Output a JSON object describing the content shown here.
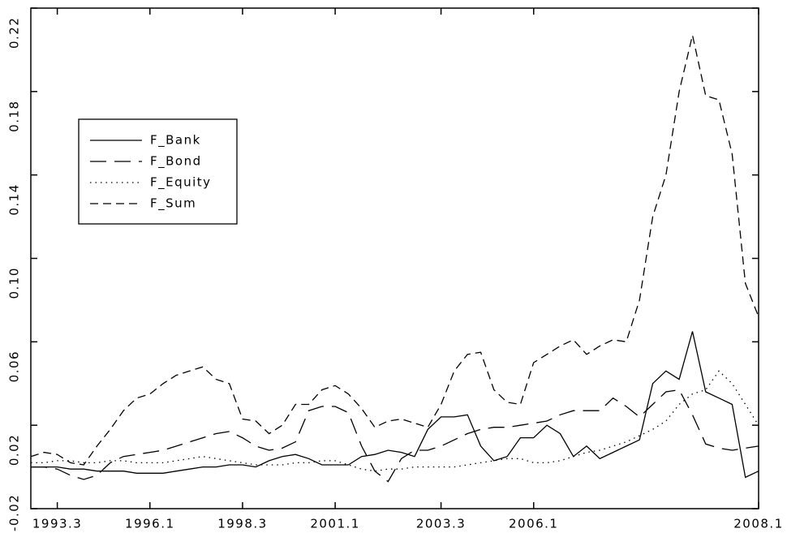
{
  "chart_data": {
    "type": "line",
    "categories": [
      null,
      null,
      "1993.3",
      null,
      null,
      null,
      null,
      null,
      null,
      "1996.1",
      null,
      null,
      null,
      null,
      null,
      null,
      "1998.3",
      null,
      null,
      null,
      null,
      null,
      null,
      "2001.1",
      null,
      null,
      null,
      null,
      null,
      null,
      null,
      "2003.3",
      null,
      null,
      null,
      null,
      null,
      null,
      "2006.1",
      null,
      null,
      null,
      null,
      null,
      null,
      null,
      null,
      null,
      null,
      null,
      null,
      null,
      null,
      null,
      null,
      "2008.1"
    ],
    "series": [
      {
        "name": "F_Bank",
        "color": "#000000",
        "linestyle": "solid",
        "values": [
          0.0,
          0.0,
          0.0,
          -0.001,
          -0.001,
          -0.002,
          -0.002,
          -0.002,
          -0.003,
          -0.003,
          -0.003,
          -0.002,
          -0.001,
          0.0,
          0.0,
          0.001,
          0.001,
          0.0,
          0.003,
          0.005,
          0.006,
          0.004,
          0.001,
          0.001,
          0.001,
          0.005,
          0.006,
          0.008,
          0.007,
          0.005,
          0.018,
          0.024,
          0.024,
          0.025,
          0.01,
          0.003,
          0.005,
          0.014,
          0.014,
          0.02,
          0.016,
          0.005,
          0.01,
          0.004,
          0.007,
          0.01,
          0.013,
          0.04,
          0.046,
          0.042,
          0.065,
          0.036,
          0.033,
          0.03,
          -0.005,
          -0.002
        ]
      },
      {
        "name": "F_Bond",
        "color": "#000000",
        "linestyle": "long-dash",
        "values": [
          0.0,
          0.0,
          -0.001,
          -0.004,
          -0.006,
          -0.004,
          0.002,
          0.005,
          0.006,
          0.007,
          0.008,
          0.01,
          0.012,
          0.014,
          0.016,
          0.017,
          0.014,
          0.01,
          0.008,
          0.009,
          0.012,
          0.027,
          0.029,
          0.029,
          0.026,
          0.01,
          -0.002,
          -0.007,
          0.004,
          0.008,
          0.008,
          0.01,
          0.013,
          0.016,
          0.018,
          0.019,
          0.019,
          0.02,
          0.021,
          0.022,
          0.025,
          0.027,
          0.027,
          0.027,
          0.033,
          0.029,
          0.024,
          0.03,
          0.036,
          0.037,
          0.025,
          0.011,
          0.009,
          0.008,
          0.009,
          0.01
        ]
      },
      {
        "name": "F_Equity",
        "color": "#000000",
        "linestyle": "dotted",
        "values": [
          0.002,
          0.002,
          0.003,
          0.003,
          0.002,
          0.002,
          0.003,
          0.003,
          0.002,
          0.002,
          0.002,
          0.003,
          0.004,
          0.005,
          0.004,
          0.003,
          0.002,
          0.001,
          0.001,
          0.001,
          0.002,
          0.002,
          0.003,
          0.003,
          0.001,
          -0.001,
          -0.002,
          -0.001,
          -0.001,
          0.0,
          0.0,
          0.0,
          0.0,
          0.001,
          0.002,
          0.003,
          0.004,
          0.004,
          0.002,
          0.002,
          0.003,
          0.005,
          0.007,
          0.008,
          0.01,
          0.012,
          0.015,
          0.018,
          0.022,
          0.03,
          0.035,
          0.037,
          0.046,
          0.04,
          0.03,
          0.02
        ]
      },
      {
        "name": "F_Sum",
        "color": "#000000",
        "linestyle": "dashed",
        "values": [
          0.005,
          0.007,
          0.006,
          0.002,
          0.001,
          0.01,
          0.018,
          0.027,
          0.033,
          0.035,
          0.04,
          0.044,
          0.046,
          0.048,
          0.042,
          0.04,
          0.023,
          0.022,
          0.016,
          0.02,
          0.03,
          0.03,
          0.037,
          0.039,
          0.035,
          0.028,
          0.019,
          0.022,
          0.023,
          0.021,
          0.019,
          0.03,
          0.046,
          0.054,
          0.055,
          0.037,
          0.031,
          0.03,
          0.05,
          0.054,
          0.058,
          0.061,
          0.054,
          0.058,
          0.061,
          0.06,
          0.08,
          0.12,
          0.14,
          0.18,
          0.207,
          0.178,
          0.176,
          0.15,
          0.088,
          0.072
        ]
      }
    ],
    "ylim": [
      -0.02,
      0.22
    ],
    "yticks": [
      -0.02,
      0.02,
      0.06,
      {
        "value": 0.1,
        "label": "0.10"
      },
      0.14,
      0.18,
      0.22
    ],
    "grid": false,
    "legend": "upper-left"
  }
}
